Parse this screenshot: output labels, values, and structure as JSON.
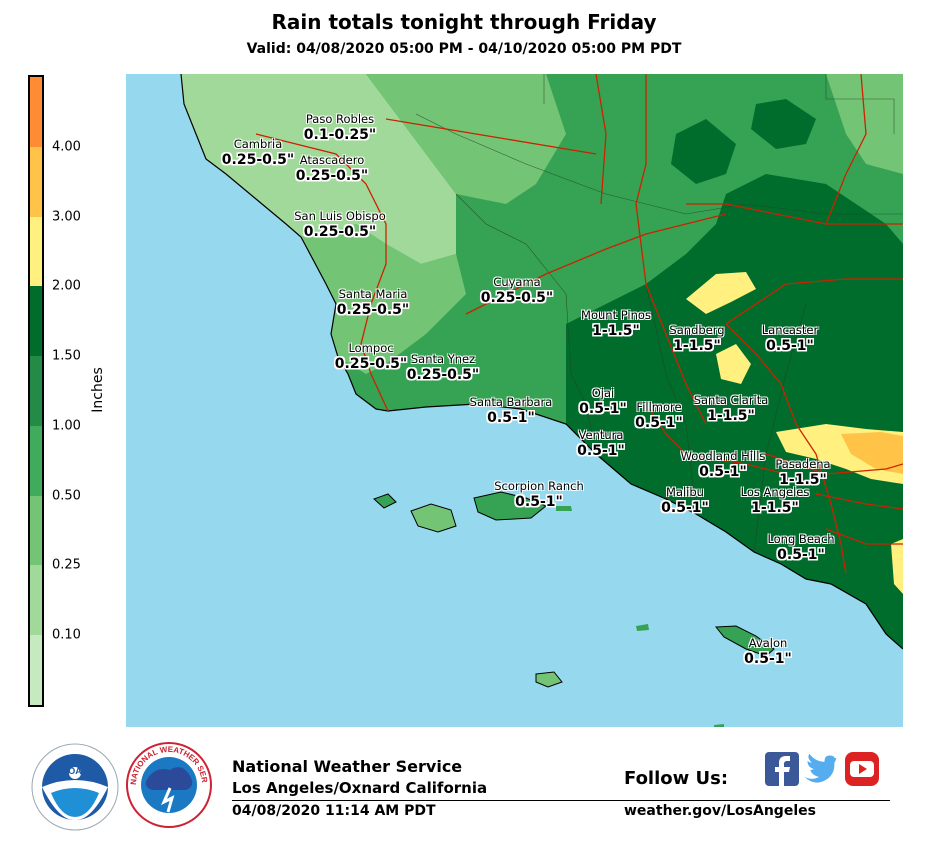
{
  "header": {
    "title": "Rain totals tonight through Friday",
    "valid": "Valid: 04/08/2020 05:00 PM - 04/10/2020 05:00 PM PDT"
  },
  "legend": {
    "unit": "Inches",
    "ticks": [
      "0.10",
      "0.25",
      "0.50",
      "1.00",
      "1.50",
      "2.00",
      "3.00",
      "4.00"
    ],
    "colors": [
      "#c7e9c0",
      "#a1d99b",
      "#74c476",
      "#41ab5d",
      "#238b45",
      "#006d2c",
      "#fff07f",
      "#ffc447",
      "#ff8c35"
    ]
  },
  "map_colors": {
    "ocean": "#96d9ee",
    "light": "#a1d99b",
    "mid": "#74c476",
    "heavy": "#35a353",
    "heavier": "#006d2c",
    "yellow": "#fff07f",
    "gold": "#ffc447",
    "roads": "#cc2200"
  },
  "locations": [
    {
      "name": "Paso Robles",
      "amount": "0.1-0.25\""
    },
    {
      "name": "Cambria",
      "amount": "0.25-0.5\""
    },
    {
      "name": "Atascadero",
      "amount": "0.25-0.5\""
    },
    {
      "name": "San Luis Obispo",
      "amount": "0.25-0.5\""
    },
    {
      "name": "Cuyama",
      "amount": "0.25-0.5\""
    },
    {
      "name": "Santa Maria",
      "amount": "0.25-0.5\""
    },
    {
      "name": "Mount Pinos",
      "amount": "1-1.5\""
    },
    {
      "name": "Sandberg",
      "amount": "1-1.5\""
    },
    {
      "name": "Lancaster",
      "amount": "0.5-1\""
    },
    {
      "name": "Lompoc",
      "amount": "0.25-0.5\""
    },
    {
      "name": "Santa Ynez",
      "amount": "0.25-0.5\""
    },
    {
      "name": "Santa Barbara",
      "amount": "0.5-1\""
    },
    {
      "name": "Ojai",
      "amount": "0.5-1\""
    },
    {
      "name": "Fillmore",
      "amount": "0.5-1\""
    },
    {
      "name": "Santa Clarita",
      "amount": "1-1.5\""
    },
    {
      "name": "Ventura",
      "amount": "0.5-1\""
    },
    {
      "name": "Woodland Hills",
      "amount": "0.5-1\""
    },
    {
      "name": "Pasadena",
      "amount": "1-1.5\""
    },
    {
      "name": "Scorpion Ranch",
      "amount": "0.5-1\""
    },
    {
      "name": "Malibu",
      "amount": "0.5-1\""
    },
    {
      "name": "Los Angeles",
      "amount": "1-1.5\""
    },
    {
      "name": "Long Beach",
      "amount": "0.5-1\""
    },
    {
      "name": "Avalon",
      "amount": "0.5-1\""
    }
  ],
  "footer": {
    "org": "National Weather Service",
    "office": "Los Angeles/Oxnard California",
    "issued": "04/08/2020 11:14 AM PDT",
    "follow": "Follow Us:",
    "website": "weather.gov/LosAngeles",
    "noaa_logo": "NOAA",
    "nws_logo_text": "NATIONAL WEATHER SERVICE",
    "social_icons": [
      "facebook-icon",
      "twitter-icon",
      "youtube-icon"
    ]
  }
}
